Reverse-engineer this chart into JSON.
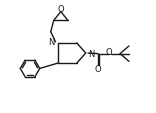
{
  "bg_color": "#ffffff",
  "line_color": "#1a1a1a",
  "line_width": 1.0,
  "figsize": [
    1.56,
    1.14
  ],
  "dpi": 100,
  "xlim": [
    -1.5,
    9.5
  ],
  "ylim": [
    2.0,
    11.5
  ]
}
